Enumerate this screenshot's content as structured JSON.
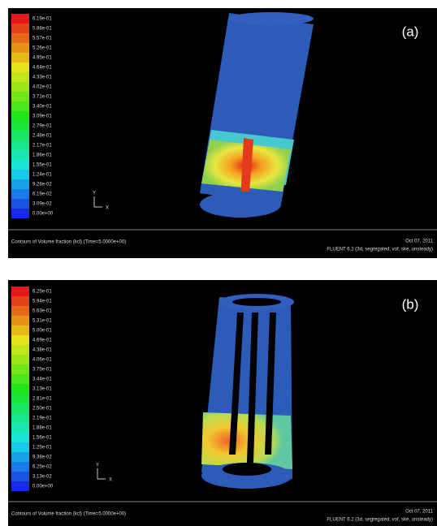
{
  "panels": [
    {
      "label": "(a)",
      "colorbar": [
        "6.19e-01",
        "5.88e-01",
        "5.57e-01",
        "5.26e-01",
        "4.95e-01",
        "4.64e-01",
        "4.33e-01",
        "4.02e-01",
        "3.71e-01",
        "3.40e-01",
        "3.09e-01",
        "2.79e-01",
        "2.48e-01",
        "2.17e-01",
        "1.86e-01",
        "1.55e-01",
        "1.24e-01",
        "9.28e-02",
        "6.19e-02",
        "3.09e-02",
        "0.00e+00"
      ],
      "footer_left": "Contours of Volume fraction (kcl)  (Time=5.0000e+00)",
      "footer_date": "Oct 07, 2011",
      "footer_solver": "FLUENT 6.2 (3d, segregated, vof, ske, unsteady)",
      "axis_y": "Y",
      "axis_x": "X"
    },
    {
      "label": "(b)",
      "colorbar": [
        "6.25e-01",
        "5.94e-01",
        "5.63e-01",
        "5.31e-01",
        "5.00e-01",
        "4.69e-01",
        "4.38e-01",
        "4.06e-01",
        "3.75e-01",
        "3.44e-01",
        "3.13e-01",
        "2.81e-01",
        "2.50e-01",
        "2.19e-01",
        "1.88e-01",
        "1.56e-01",
        "1.25e-01",
        "9.38e-02",
        "6.25e-02",
        "3.13e-02",
        "0.00e+00"
      ],
      "footer_left": "Contours of Volume fraction (kcl)  (Time=5.0000e+00)",
      "footer_date": "Oct 07, 2011",
      "footer_solver": "FLUENT 6.2 (3d, segregated, vof, ske, unsteady)",
      "axis_y": "Y",
      "axis_x": "X"
    }
  ]
}
